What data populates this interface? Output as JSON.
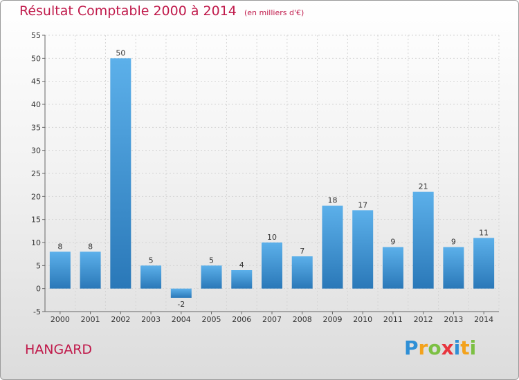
{
  "title": "Résultat Comptable 2000 à 2014",
  "unit": "(en milliers d'€)",
  "town": "HANGARD",
  "logo": {
    "letters": [
      "P",
      "r",
      "o",
      "x",
      "i",
      "t",
      "i"
    ],
    "colors": [
      "#2e8fd6",
      "#f3a21c",
      "#7cc043",
      "#e8353e",
      "#2e8fd6",
      "#f3a21c",
      "#7cc043"
    ]
  },
  "colors": {
    "bar_top": "#5cb0ea",
    "bar_bottom": "#2a78b8",
    "accent": "#c01a4b"
  },
  "chart_data": {
    "type": "bar",
    "categories": [
      "2000",
      "2001",
      "2002",
      "2003",
      "2004",
      "2005",
      "2006",
      "2007",
      "2008",
      "2009",
      "2010",
      "2011",
      "2012",
      "2013",
      "2014"
    ],
    "values": [
      8,
      8,
      50,
      5,
      -2,
      5,
      4,
      10,
      7,
      18,
      17,
      9,
      21,
      9,
      11
    ],
    "ylim": [
      -5,
      55
    ],
    "yticks": [
      -5,
      0,
      5,
      10,
      15,
      20,
      25,
      30,
      35,
      40,
      45,
      50,
      55
    ],
    "grid": true,
    "legend": "none"
  }
}
